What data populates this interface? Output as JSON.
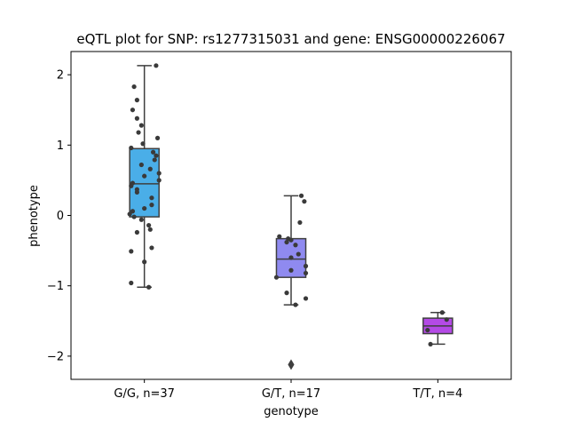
{
  "chart_data": {
    "type": "box",
    "title": "eQTL plot for SNP: rs1277315031 and gene: ENSG00000226067",
    "xlabel": "genotype",
    "ylabel": "phenotype",
    "ylim": [
      -2.33,
      2.33
    ],
    "yticks": [
      -2,
      -1,
      0,
      1,
      2
    ],
    "ytick_labels": [
      "−2",
      "−1",
      "0",
      "1",
      "2"
    ],
    "grid": false,
    "categories": [
      "G/G, n=37",
      "G/T, n=17",
      "T/T, n=4"
    ],
    "colors": [
      "#4aaee8",
      "#8f8af0",
      "#b44ae6"
    ],
    "boxes": [
      {
        "category": "G/G, n=37",
        "q1": -0.02,
        "median": 0.45,
        "q3": 0.95,
        "whisker_low": -1.02,
        "whisker_high": 2.13,
        "outliers": []
      },
      {
        "category": "G/T, n=17",
        "q1": -0.88,
        "median": -0.62,
        "q3": -0.33,
        "whisker_low": -1.27,
        "whisker_high": 0.28,
        "outliers": [
          -2.12
        ]
      },
      {
        "category": "T/T, n=4",
        "q1": -1.68,
        "median": -1.57,
        "q3": -1.46,
        "whisker_low": -1.83,
        "whisker_high": -1.38,
        "outliers": []
      }
    ],
    "points": [
      {
        "category": 0,
        "values": [
          2.13,
          1.83,
          1.64,
          1.5,
          1.38,
          1.28,
          1.18,
          1.1,
          1.02,
          0.96,
          0.9,
          0.85,
          0.79,
          0.72,
          0.66,
          0.6,
          0.56,
          0.5,
          0.46,
          0.42,
          0.37,
          0.33,
          0.25,
          0.15,
          0.1,
          0.06,
          0.02,
          -0.02,
          -0.06,
          -0.14,
          -0.2,
          -0.24,
          -0.46,
          -0.51,
          -0.66,
          -0.96,
          -1.02
        ],
        "jitter": [
          0.08,
          -0.07,
          -0.05,
          -0.08,
          -0.05,
          -0.02,
          -0.04,
          0.09,
          -0.01,
          -0.09,
          0.06,
          0.08,
          0.07,
          -0.02,
          0.04,
          0.1,
          0.0,
          0.1,
          -0.08,
          -0.09,
          -0.05,
          -0.05,
          0.05,
          0.05,
          0.0,
          -0.08,
          -0.1,
          -0.07,
          -0.02,
          0.03,
          0.04,
          -0.05,
          0.05,
          -0.09,
          0.0,
          -0.09,
          0.03
        ]
      },
      {
        "category": 1,
        "values": [
          0.28,
          0.2,
          -0.1,
          -0.3,
          -0.33,
          -0.35,
          -0.38,
          -0.42,
          -0.55,
          -0.6,
          -0.72,
          -0.78,
          -0.82,
          -0.88,
          -1.1,
          -1.18,
          -1.27
        ],
        "jitter": [
          0.07,
          0.09,
          0.06,
          -0.08,
          -0.02,
          0.0,
          -0.03,
          0.03,
          0.05,
          0.0,
          0.1,
          0.0,
          0.1,
          -0.1,
          -0.03,
          0.1,
          0.03
        ]
      },
      {
        "category": 2,
        "values": [
          -1.38,
          -1.48,
          -1.63,
          -1.83
        ],
        "jitter": [
          0.03,
          0.06,
          -0.07,
          -0.05
        ]
      }
    ]
  }
}
